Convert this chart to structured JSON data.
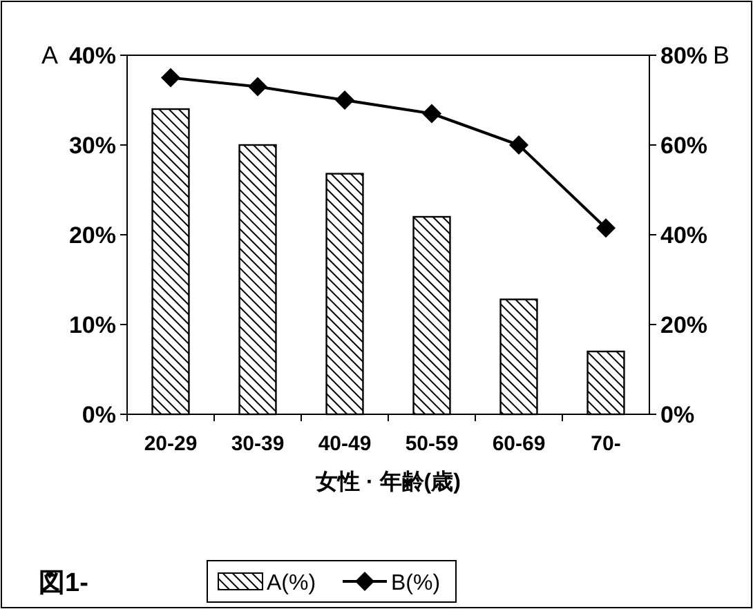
{
  "chart_data": {
    "type": "bar",
    "ylabel": "A",
    "y2label": "B",
    "xlabel": "女性 · 年齢(歳)",
    "annotations": [
      "図1-"
    ],
    "categories": [
      "20-29",
      "30-39",
      "40-49",
      "50-59",
      "60-69",
      "70-"
    ],
    "series": [
      {
        "name": "A(%)",
        "color": "#000000",
        "values": [
          34,
          30,
          26.8,
          22,
          12.8,
          7
        ]
      },
      {
        "name": "B(%)",
        "type": "line",
        "axis": "y2",
        "color": "#000000",
        "marker": "diamond",
        "values": [
          75,
          73,
          70,
          67,
          60,
          41.5
        ]
      }
    ],
    "ylim": [
      0,
      40
    ],
    "yticks": [
      {
        "value": 0,
        "label": "0%"
      },
      {
        "value": 10,
        "label": "10%"
      },
      {
        "value": 20,
        "label": "20%"
      },
      {
        "value": 30,
        "label": "30%"
      },
      {
        "value": 40,
        "label": "40%"
      }
    ],
    "y2lim": [
      0,
      80
    ],
    "y2ticks": [
      {
        "value": 0,
        "label": "0%"
      },
      {
        "value": 20,
        "label": "20%"
      },
      {
        "value": 40,
        "label": "40%"
      },
      {
        "value": 60,
        "label": "60%"
      },
      {
        "value": 80,
        "label": "80%"
      }
    ],
    "grid": false,
    "legend": "bottom"
  }
}
